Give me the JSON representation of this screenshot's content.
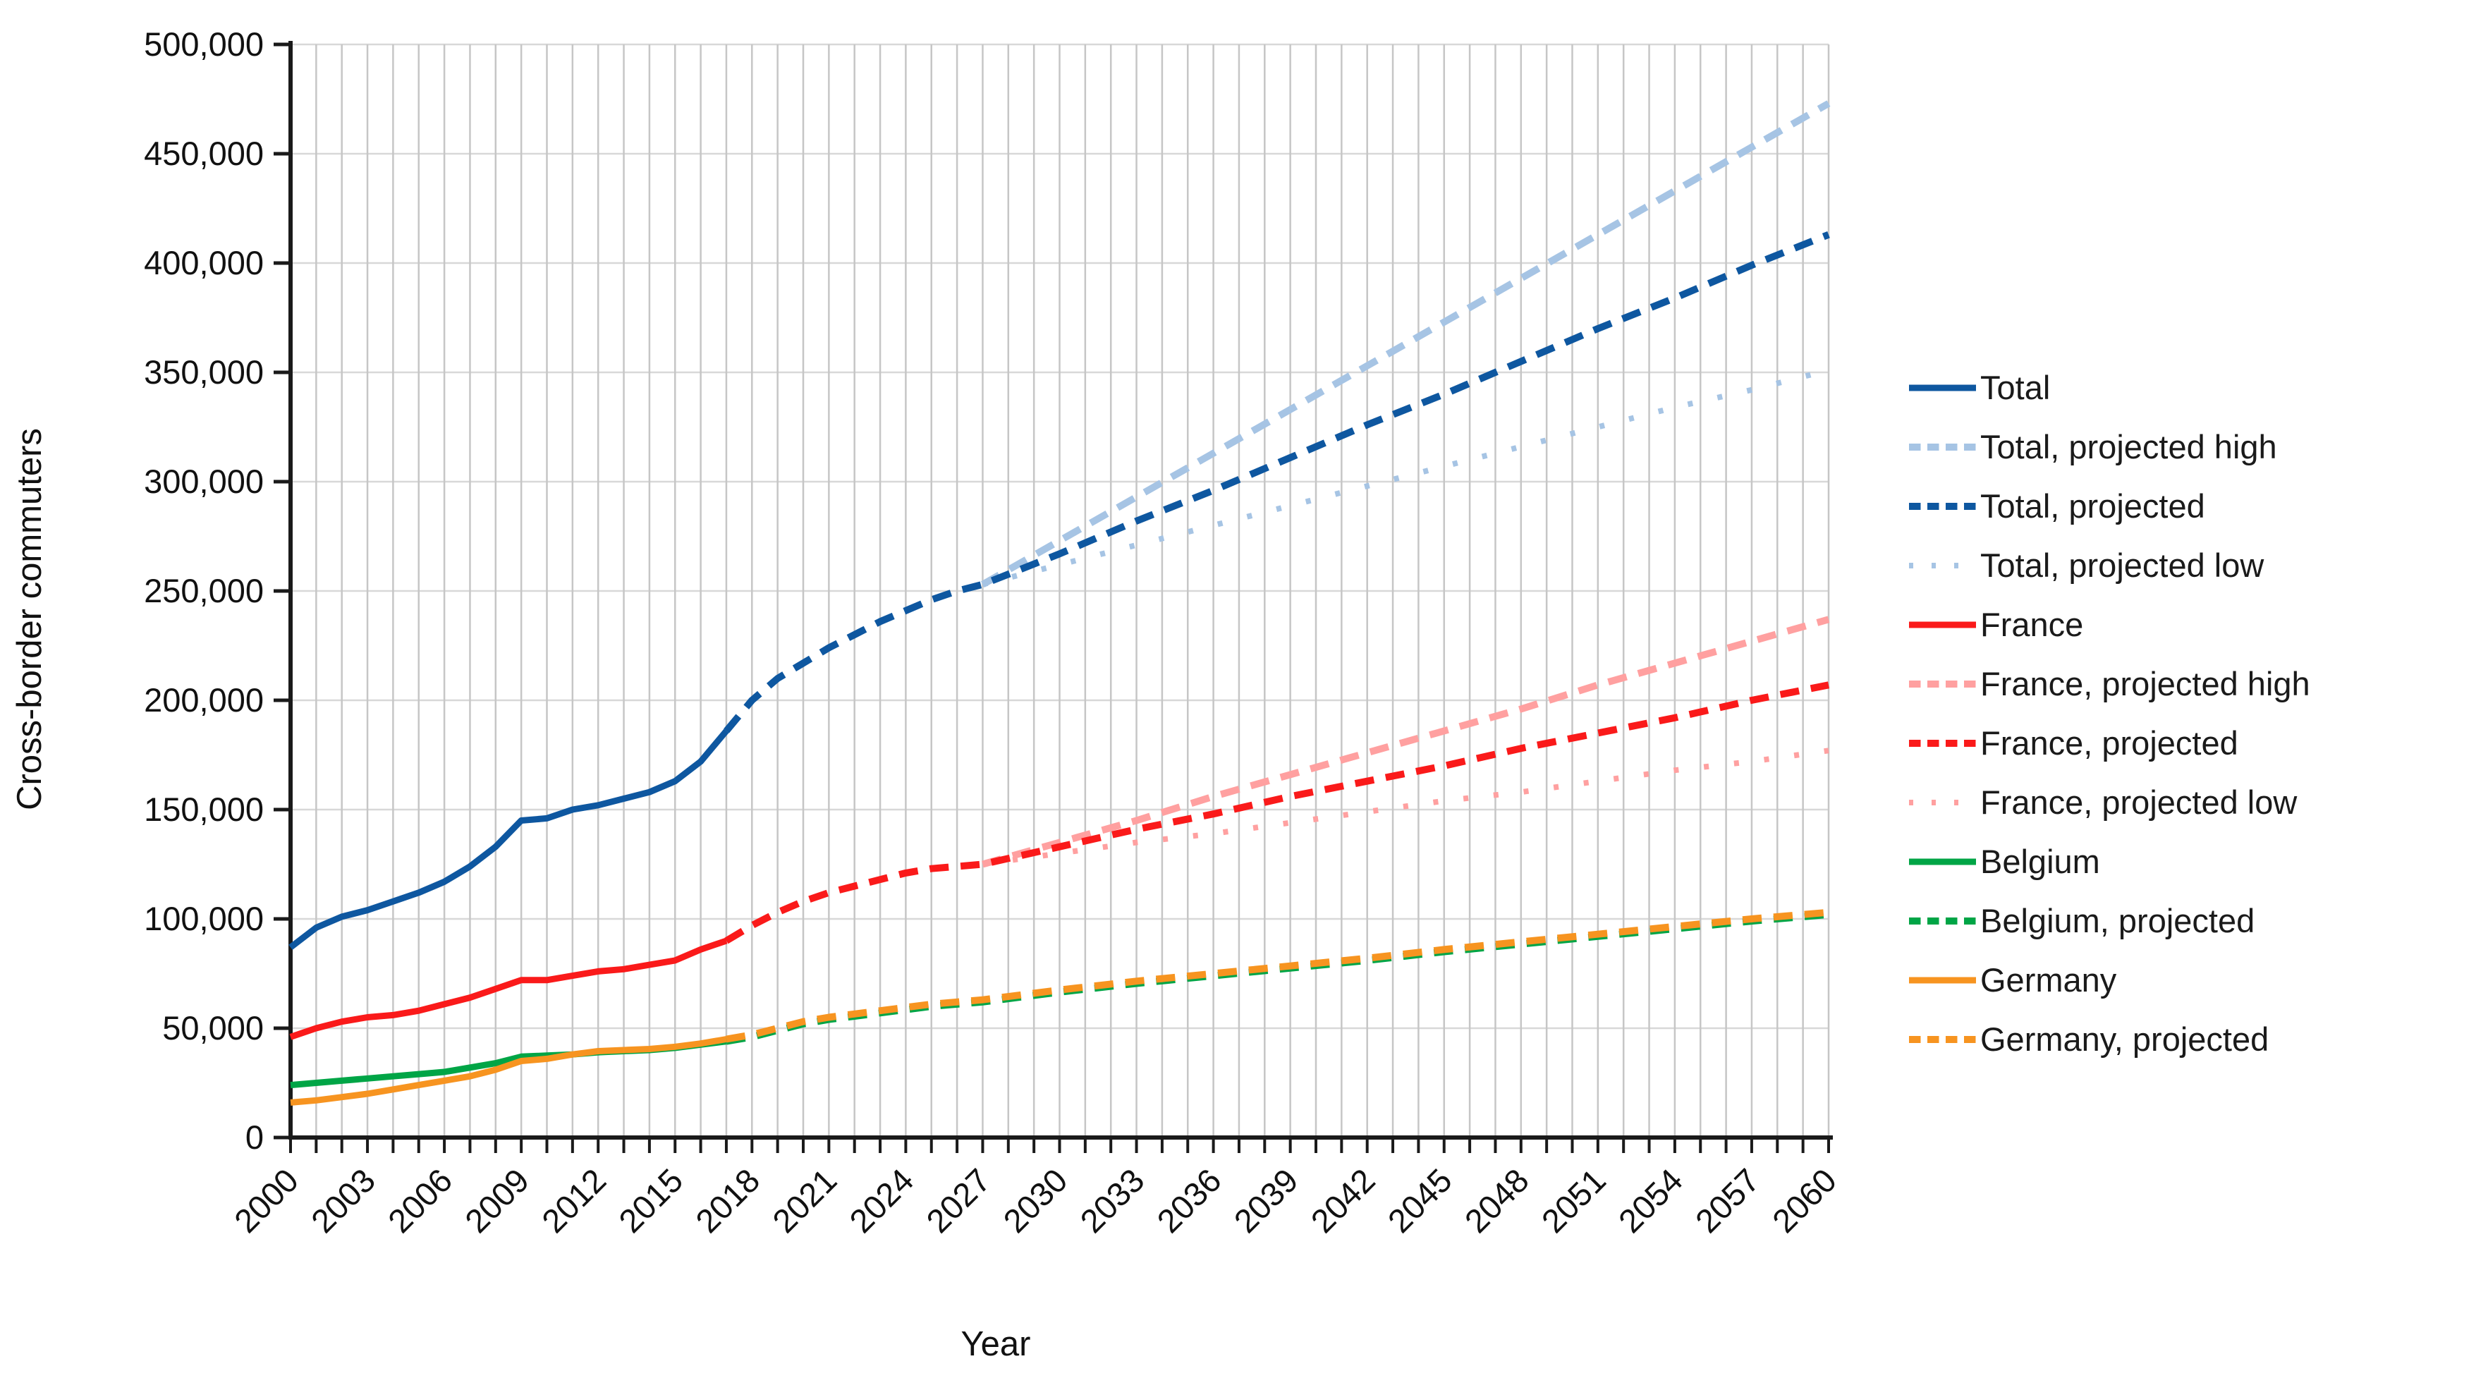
{
  "chart_data": {
    "type": "line",
    "title": "",
    "xlabel": "Year",
    "ylabel": "Cross-border commuters",
    "xlim": [
      2000,
      2060
    ],
    "ylim": [
      0,
      500000
    ],
    "ytick_interval": 50000,
    "xtick_minor_interval": 1,
    "xtick_label_interval": 3,
    "x_tick_labels": [
      "2000",
      "2003",
      "2006",
      "2009",
      "2012",
      "2015",
      "2018",
      "2021",
      "2024",
      "2027",
      "2030",
      "2033",
      "2036",
      "2039",
      "2042",
      "2045",
      "2048",
      "2051",
      "2054",
      "2057",
      "2060"
    ],
    "y_tick_labels": [
      "0",
      "50,000",
      "100,000",
      "150,000",
      "200,000",
      "250,000",
      "300,000",
      "350,000",
      "400,000",
      "450,000",
      "500,000"
    ],
    "grid": true,
    "legend_position": "right",
    "colors": {
      "total": "#0e57a0",
      "total_light": "#a6c4e4",
      "france": "#fa1a1a",
      "france_light": "#ffa0a0",
      "belgium": "#00a546",
      "germany": "#f79420",
      "grid_vertical": "#c6c6c6",
      "grid_horizontal": "#d8d8d8",
      "axis": "#1a1a1a"
    },
    "series": [
      {
        "name": "Total",
        "color": "#0e57a0",
        "style": "solid",
        "points": [
          [
            2000,
            87000
          ],
          [
            2001,
            96000
          ],
          [
            2002,
            101000
          ],
          [
            2003,
            104000
          ],
          [
            2004,
            108000
          ],
          [
            2005,
            112000
          ],
          [
            2006,
            117000
          ],
          [
            2007,
            124000
          ],
          [
            2008,
            133000
          ],
          [
            2009,
            145000
          ],
          [
            2010,
            146000
          ],
          [
            2011,
            150000
          ],
          [
            2012,
            152000
          ],
          [
            2013,
            155000
          ],
          [
            2014,
            158000
          ],
          [
            2015,
            163000
          ],
          [
            2016,
            172000
          ],
          [
            2017,
            186000
          ]
        ]
      },
      {
        "name": "Total, projected high",
        "color": "#a6c4e4",
        "style": "dashed",
        "points": [
          [
            2027,
            253000
          ],
          [
            2030,
            273000
          ],
          [
            2033,
            293000
          ],
          [
            2036,
            313000
          ],
          [
            2039,
            333000
          ],
          [
            2042,
            353000
          ],
          [
            2045,
            373000
          ],
          [
            2048,
            393000
          ],
          [
            2051,
            413000
          ],
          [
            2054,
            433000
          ],
          [
            2057,
            453000
          ],
          [
            2060,
            473000
          ]
        ]
      },
      {
        "name": "Total, projected",
        "color": "#0e57a0",
        "style": "dashed",
        "points": [
          [
            2017,
            186000
          ],
          [
            2018,
            200000
          ],
          [
            2019,
            210000
          ],
          [
            2020,
            217000
          ],
          [
            2021,
            224000
          ],
          [
            2022,
            230000
          ],
          [
            2023,
            236000
          ],
          [
            2024,
            241000
          ],
          [
            2025,
            246000
          ],
          [
            2026,
            250000
          ],
          [
            2027,
            253000
          ],
          [
            2030,
            267000
          ],
          [
            2033,
            282000
          ],
          [
            2036,
            296000
          ],
          [
            2039,
            311000
          ],
          [
            2042,
            326000
          ],
          [
            2045,
            340000
          ],
          [
            2048,
            355000
          ],
          [
            2051,
            370000
          ],
          [
            2054,
            384000
          ],
          [
            2057,
            399000
          ],
          [
            2060,
            413000
          ]
        ]
      },
      {
        "name": "Total, projected low",
        "color": "#a6c4e4",
        "style": "dotted",
        "points": [
          [
            2027,
            253000
          ],
          [
            2030,
            262000
          ],
          [
            2033,
            271000
          ],
          [
            2036,
            280000
          ],
          [
            2039,
            289000
          ],
          [
            2042,
            298000
          ],
          [
            2045,
            307000
          ],
          [
            2048,
            316000
          ],
          [
            2051,
            325000
          ],
          [
            2054,
            334000
          ],
          [
            2057,
            342000
          ],
          [
            2060,
            351000
          ]
        ]
      },
      {
        "name": "France",
        "color": "#fa1a1a",
        "style": "solid",
        "points": [
          [
            2000,
            46000
          ],
          [
            2001,
            50000
          ],
          [
            2002,
            53000
          ],
          [
            2003,
            55000
          ],
          [
            2004,
            56000
          ],
          [
            2005,
            58000
          ],
          [
            2006,
            61000
          ],
          [
            2007,
            64000
          ],
          [
            2008,
            68000
          ],
          [
            2009,
            72000
          ],
          [
            2010,
            72000
          ],
          [
            2011,
            74000
          ],
          [
            2012,
            76000
          ],
          [
            2013,
            77000
          ],
          [
            2014,
            79000
          ],
          [
            2015,
            81000
          ],
          [
            2016,
            86000
          ],
          [
            2017,
            90000
          ]
        ]
      },
      {
        "name": "France, projected high",
        "color": "#ffa0a0",
        "style": "dashed",
        "points": [
          [
            2027,
            125000
          ],
          [
            2030,
            135000
          ],
          [
            2033,
            145000
          ],
          [
            2036,
            156000
          ],
          [
            2039,
            166000
          ],
          [
            2042,
            176000
          ],
          [
            2045,
            186000
          ],
          [
            2048,
            196000
          ],
          [
            2051,
            207000
          ],
          [
            2054,
            217000
          ],
          [
            2057,
            227000
          ],
          [
            2060,
            237000
          ]
        ]
      },
      {
        "name": "France, projected",
        "color": "#fa1a1a",
        "style": "dashed",
        "points": [
          [
            2017,
            90000
          ],
          [
            2018,
            97000
          ],
          [
            2019,
            103000
          ],
          [
            2020,
            108000
          ],
          [
            2021,
            112000
          ],
          [
            2022,
            115000
          ],
          [
            2023,
            118000
          ],
          [
            2024,
            121000
          ],
          [
            2025,
            123000
          ],
          [
            2026,
            124000
          ],
          [
            2027,
            125000
          ],
          [
            2030,
            133000
          ],
          [
            2033,
            141000
          ],
          [
            2036,
            148000
          ],
          [
            2039,
            156000
          ],
          [
            2042,
            163000
          ],
          [
            2045,
            170000
          ],
          [
            2048,
            178000
          ],
          [
            2051,
            185000
          ],
          [
            2054,
            192000
          ],
          [
            2057,
            200000
          ],
          [
            2060,
            207000
          ]
        ]
      },
      {
        "name": "France, projected low",
        "color": "#ffa0a0",
        "style": "dotted",
        "points": [
          [
            2027,
            125000
          ],
          [
            2030,
            130000
          ],
          [
            2033,
            135000
          ],
          [
            2036,
            139000
          ],
          [
            2039,
            144000
          ],
          [
            2042,
            149000
          ],
          [
            2045,
            154000
          ],
          [
            2048,
            158000
          ],
          [
            2051,
            163000
          ],
          [
            2054,
            168000
          ],
          [
            2057,
            172000
          ],
          [
            2060,
            177000
          ]
        ]
      },
      {
        "name": "Belgium",
        "color": "#00a546",
        "style": "solid",
        "points": [
          [
            2000,
            24000
          ],
          [
            2001,
            25000
          ],
          [
            2002,
            26000
          ],
          [
            2003,
            27000
          ],
          [
            2004,
            28000
          ],
          [
            2005,
            29000
          ],
          [
            2006,
            30000
          ],
          [
            2007,
            32000
          ],
          [
            2008,
            34000
          ],
          [
            2009,
            37000
          ],
          [
            2010,
            37500
          ],
          [
            2011,
            38000
          ],
          [
            2012,
            39000
          ],
          [
            2013,
            39500
          ],
          [
            2014,
            40000
          ],
          [
            2015,
            41000
          ],
          [
            2016,
            42500
          ],
          [
            2017,
            44000
          ]
        ]
      },
      {
        "name": "Belgium, projected",
        "color": "#00a546",
        "style": "dashed",
        "points": [
          [
            2017,
            44000
          ],
          [
            2018,
            46000
          ],
          [
            2019,
            49000
          ],
          [
            2020,
            52000
          ],
          [
            2021,
            54000
          ],
          [
            2022,
            55500
          ],
          [
            2023,
            57000
          ],
          [
            2024,
            58500
          ],
          [
            2025,
            60000
          ],
          [
            2026,
            61000
          ],
          [
            2027,
            62000
          ],
          [
            2030,
            66500
          ],
          [
            2033,
            70500
          ],
          [
            2036,
            74000
          ],
          [
            2039,
            77500
          ],
          [
            2042,
            81000
          ],
          [
            2045,
            85000
          ],
          [
            2048,
            88500
          ],
          [
            2051,
            92000
          ],
          [
            2054,
            95500
          ],
          [
            2057,
            99000
          ],
          [
            2060,
            102000
          ]
        ]
      },
      {
        "name": "Germany",
        "color": "#f79420",
        "style": "solid",
        "points": [
          [
            2000,
            16000
          ],
          [
            2001,
            17000
          ],
          [
            2002,
            18500
          ],
          [
            2003,
            20000
          ],
          [
            2004,
            22000
          ],
          [
            2005,
            24000
          ],
          [
            2006,
            26000
          ],
          [
            2007,
            28000
          ],
          [
            2008,
            31000
          ],
          [
            2009,
            35000
          ],
          [
            2010,
            36000
          ],
          [
            2011,
            38000
          ],
          [
            2012,
            39500
          ],
          [
            2013,
            40000
          ],
          [
            2014,
            40500
          ],
          [
            2015,
            41500
          ],
          [
            2016,
            43000
          ],
          [
            2017,
            45000
          ]
        ]
      },
      {
        "name": "Germany, projected",
        "color": "#f79420",
        "style": "dashed",
        "points": [
          [
            2017,
            45000
          ],
          [
            2018,
            47000
          ],
          [
            2019,
            50000
          ],
          [
            2020,
            53000
          ],
          [
            2021,
            55000
          ],
          [
            2022,
            56500
          ],
          [
            2023,
            58000
          ],
          [
            2024,
            59500
          ],
          [
            2025,
            61000
          ],
          [
            2026,
            62000
          ],
          [
            2027,
            63000
          ],
          [
            2030,
            67500
          ],
          [
            2033,
            71500
          ],
          [
            2036,
            75000
          ],
          [
            2039,
            78500
          ],
          [
            2042,
            82000
          ],
          [
            2045,
            86000
          ],
          [
            2048,
            89500
          ],
          [
            2051,
            93000
          ],
          [
            2054,
            96500
          ],
          [
            2057,
            100000
          ],
          [
            2060,
            103000
          ]
        ]
      }
    ]
  }
}
